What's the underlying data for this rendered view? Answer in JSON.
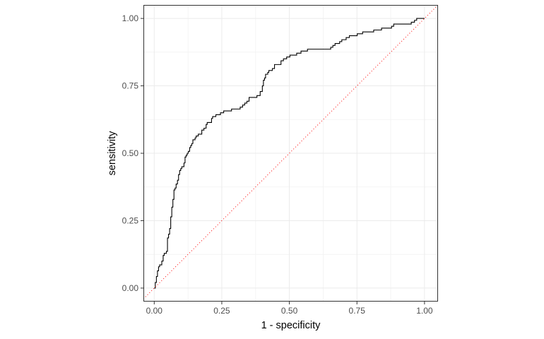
{
  "chart_data": {
    "type": "line",
    "title": "",
    "xlabel": "1 - specificity",
    "ylabel": "sensitivity",
    "xlim": [
      -0.04,
      1.05
    ],
    "ylim": [
      -0.05,
      1.05
    ],
    "x_ticks": [
      0,
      0.25,
      0.5,
      0.75,
      1
    ],
    "x_tick_labels": [
      "0.00",
      "0.25",
      "0.50",
      "0.75",
      "1.00"
    ],
    "y_ticks": [
      0,
      0.25,
      0.5,
      0.75,
      1
    ],
    "y_tick_labels": [
      "0.00",
      "0.25",
      "0.50",
      "0.75",
      "1.00"
    ],
    "grid": true,
    "legend": "none",
    "series": [
      {
        "style": "step",
        "color": "#000000",
        "x": [
          0.0,
          0.004,
          0.008,
          0.012,
          0.016,
          0.02,
          0.024,
          0.028,
          0.033,
          0.037,
          0.041,
          0.045,
          0.049,
          0.053,
          0.057,
          0.061,
          0.065,
          0.069,
          0.073,
          0.077,
          0.081,
          0.086,
          0.09,
          0.094,
          0.098,
          0.102,
          0.11,
          0.114,
          0.118,
          0.122,
          0.126,
          0.131,
          0.135,
          0.139,
          0.143,
          0.151,
          0.155,
          0.163,
          0.176,
          0.184,
          0.192,
          0.196,
          0.2,
          0.212,
          0.216,
          0.228,
          0.237,
          0.245,
          0.249,
          0.257,
          0.278,
          0.286,
          0.302,
          0.318,
          0.327,
          0.335,
          0.343,
          0.351,
          0.359,
          0.38,
          0.392,
          0.4,
          0.404,
          0.408,
          0.412,
          0.42,
          0.424,
          0.437,
          0.445,
          0.461,
          0.469,
          0.478,
          0.49,
          0.502,
          0.518,
          0.527,
          0.543,
          0.567,
          0.58,
          0.588,
          0.645,
          0.653,
          0.661,
          0.669,
          0.686,
          0.694,
          0.71,
          0.722,
          0.751,
          0.771,
          0.812,
          0.82,
          0.841,
          0.878,
          0.886,
          0.951,
          0.955,
          0.959,
          0.963,
          0.967,
          0.971,
          0.976,
          0.98,
          0.992,
          1.0
        ],
        "y": [
          0.0,
          0.021,
          0.043,
          0.064,
          0.079,
          0.086,
          0.086,
          0.1,
          0.121,
          0.129,
          0.129,
          0.136,
          0.186,
          0.2,
          0.221,
          0.264,
          0.3,
          0.329,
          0.364,
          0.371,
          0.386,
          0.4,
          0.421,
          0.436,
          0.443,
          0.45,
          0.464,
          0.486,
          0.493,
          0.5,
          0.507,
          0.521,
          0.529,
          0.536,
          0.55,
          0.557,
          0.564,
          0.571,
          0.586,
          0.593,
          0.607,
          0.614,
          0.614,
          0.629,
          0.636,
          0.643,
          0.643,
          0.65,
          0.65,
          0.657,
          0.657,
          0.664,
          0.664,
          0.671,
          0.679,
          0.686,
          0.693,
          0.707,
          0.707,
          0.714,
          0.729,
          0.75,
          0.771,
          0.779,
          0.793,
          0.8,
          0.807,
          0.814,
          0.829,
          0.829,
          0.843,
          0.85,
          0.857,
          0.864,
          0.864,
          0.871,
          0.879,
          0.886,
          0.886,
          0.886,
          0.886,
          0.893,
          0.9,
          0.907,
          0.914,
          0.921,
          0.929,
          0.936,
          0.943,
          0.95,
          0.957,
          0.957,
          0.964,
          0.971,
          0.979,
          0.986,
          0.986,
          0.986,
          0.993,
          0.993,
          1.0,
          1.0,
          1.0,
          1.0,
          1.0
        ]
      },
      {
        "style": "dotted",
        "color": "#ff0000",
        "x": [
          -0.04,
          1.05
        ],
        "y": [
          -0.04,
          1.05
        ]
      }
    ]
  }
}
